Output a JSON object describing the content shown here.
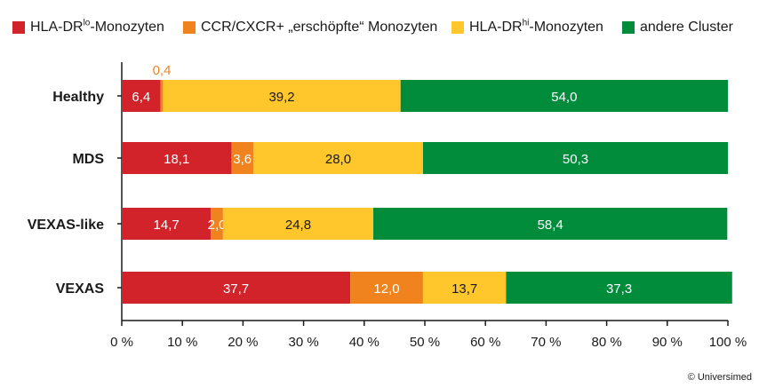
{
  "legend": [
    {
      "prefix": "HLA-DR",
      "sup": "lo",
      "suffix": "-Monozyten",
      "color": "#d2232a"
    },
    {
      "prefix": "CCR/CXCR+ „erschöpfte“ Monozyten",
      "sup": "",
      "suffix": "",
      "color": "#f0831e"
    },
    {
      "prefix": "HLA-DR",
      "sup": "hi",
      "suffix": "-Monozyten",
      "color": "#ffc72c"
    },
    {
      "prefix": "andere Cluster",
      "sup": "",
      "suffix": "",
      "color": "#008c3a"
    }
  ],
  "chart_data": {
    "type": "bar",
    "orientation": "horizontal",
    "stacked": true,
    "categories": [
      "Healthy",
      "MDS",
      "VEXAS-like",
      "VEXAS"
    ],
    "series": [
      {
        "name": "HLA-DRlo-Monozyten",
        "color": "#d2232a",
        "values": [
          6.4,
          18.1,
          14.7,
          37.7
        ],
        "labels": [
          "6,4",
          "18,1",
          "14,7",
          "37,7"
        ]
      },
      {
        "name": "CCR/CXCR+ „erschöpfte“ Monozyten",
        "color": "#f0831e",
        "values": [
          0.4,
          3.6,
          2.0,
          12.0
        ],
        "labels": [
          "0,4",
          "3,6",
          "2,0",
          "12,0"
        ]
      },
      {
        "name": "HLA-DRhi-Monozyten",
        "color": "#ffc72c",
        "values": [
          39.2,
          28.0,
          24.8,
          13.7
        ],
        "labels": [
          "39,2",
          "28,0",
          "24,8",
          "13,7"
        ]
      },
      {
        "name": "andere Cluster",
        "color": "#008c3a",
        "values": [
          54.0,
          50.3,
          58.4,
          37.3
        ],
        "labels": [
          "54,0",
          "50,3",
          "58,4",
          "37,3"
        ]
      }
    ],
    "xlim": [
      0,
      100
    ],
    "xticks": [
      "0 %",
      "10 %",
      "20 %",
      "30 %",
      "40 %",
      "50 %",
      "60 %",
      "70 %",
      "80 %",
      "90 %",
      "100 %"
    ],
    "grid": false,
    "legend_position": "top"
  },
  "copyright": "© Universimed"
}
